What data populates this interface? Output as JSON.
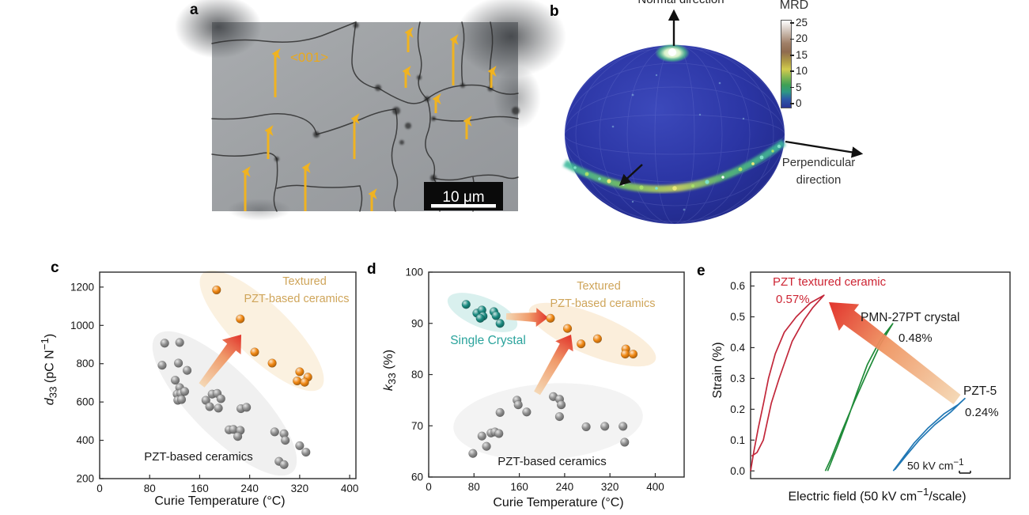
{
  "panel_a": {
    "label": "a",
    "orientation_label": "<001>",
    "scalebar_label": "10 μm"
  },
  "panel_b": {
    "label": "b",
    "normal_direction": "Normal direction",
    "perpendicular_line1": "Perpendicular",
    "perpendicular_line2": "direction",
    "colorbar": {
      "title": "MRD",
      "ticks": [
        "25",
        "20",
        "15",
        "10",
        "5",
        "0"
      ]
    }
  },
  "panel_c": {
    "label": "c",
    "xlabel": "Curie Temperature (°C)",
    "ylabel_html": "<i>d</i><sub>33</sub> (pC N<sup>−1</sup>)",
    "annotation_textured_line1": "Textured",
    "annotation_textured_line2": "PZT-based ceramics",
    "annotation_plain": "PZT-based ceramics"
  },
  "panel_d": {
    "label": "d",
    "xlabel": "Curie Temperature (°C)",
    "ylabel_html": "<i>k</i><sub>33</sub> (%)",
    "annotation_textured_line1": "Textured",
    "annotation_textured_line2": "PZT-based ceramics",
    "annotation_single_crystal": "Single Crystal",
    "annotation_plain": "PZT-based ceramics"
  },
  "panel_e": {
    "label": "e",
    "xlabel_html": "Electric field (50 kV cm<sup>−1</sup>/scale)",
    "ylabel": "Strain (%)",
    "labels": {
      "red_name": "PZT textured ceramic",
      "red_value": "0.57%",
      "green_name": "PMN-27PT crystal",
      "green_value": "0.48%",
      "blue_name": "PZT-5",
      "blue_value": "0.24%",
      "scale_note_html": "50 kV cm<sup>−1</sup>"
    }
  },
  "chart_data": [
    {
      "id": "c",
      "type": "scatter",
      "title": "",
      "xlabel": "Curie Temperature (°C)",
      "ylabel": "d33 (pC N⁻¹)",
      "xlim": [
        0,
        410
      ],
      "ylim": [
        200,
        1278
      ],
      "xticks": [
        0,
        80,
        160,
        240,
        320,
        400
      ],
      "yticks": [
        200,
        400,
        600,
        800,
        1000,
        1200
      ],
      "grid": false,
      "legend": "none",
      "series": [
        {
          "name": "PZT-based ceramics",
          "color": "#8f8f8f",
          "points": [
            [
              104,
              907
            ],
            [
              128,
              911
            ],
            [
              100,
              792
            ],
            [
              126,
              803
            ],
            [
              140,
              765
            ],
            [
              121,
              714
            ],
            [
              128,
              675
            ],
            [
              124,
              641
            ],
            [
              130,
              645
            ],
            [
              136,
              655
            ],
            [
              125,
              609
            ],
            [
              131,
              613
            ],
            [
              180,
              641
            ],
            [
              188,
              645
            ],
            [
              194,
              617
            ],
            [
              170,
              609
            ],
            [
              176,
              576
            ],
            [
              190,
              568
            ],
            [
              226,
              565
            ],
            [
              235,
              572
            ],
            [
              207,
              455
            ],
            [
              214,
              457
            ],
            [
              225,
              452
            ],
            [
              221,
              420
            ],
            [
              280,
              444
            ],
            [
              295,
              434
            ],
            [
              297,
              400
            ],
            [
              320,
              372
            ],
            [
              330,
              338
            ],
            [
              287,
              290
            ],
            [
              295,
              273
            ]
          ]
        },
        {
          "name": "Textured PZT-based ceramics",
          "color": "#f08712",
          "points": [
            [
              187,
              1185
            ],
            [
              225,
              1034
            ],
            [
              248,
              861
            ],
            [
              276,
              803
            ],
            [
              320,
              758
            ],
            [
              333,
              730
            ],
            [
              316,
              710
            ],
            [
              328,
              703
            ]
          ]
        }
      ]
    },
    {
      "id": "d",
      "type": "scatter",
      "title": "",
      "xlabel": "Curie Temperature (°C)",
      "ylabel": "k33 (%)",
      "xlim": [
        0,
        451
      ],
      "ylim": [
        60,
        100
      ],
      "xticks": [
        0,
        80,
        160,
        240,
        320,
        400
      ],
      "yticks": [
        60,
        70,
        80,
        90,
        100
      ],
      "grid": false,
      "legend": "none",
      "series": [
        {
          "name": "PZT-based ceramics",
          "color": "#8f8f8f",
          "points": [
            [
              78,
              64.6
            ],
            [
              94,
              68
            ],
            [
              102,
              66
            ],
            [
              110,
              68.6
            ],
            [
              117,
              68.8
            ],
            [
              124,
              68.5
            ],
            [
              126,
              72.6
            ],
            [
              156,
              75
            ],
            [
              158,
              74.1
            ],
            [
              173,
              72.7
            ],
            [
              220,
              75.7
            ],
            [
              231,
              75.2
            ],
            [
              234,
              74.1
            ],
            [
              231,
              71.8
            ],
            [
              278,
              69.8
            ],
            [
              311,
              69.9
            ],
            [
              343,
              69.9
            ],
            [
              346,
              66.8
            ]
          ]
        },
        {
          "name": "Single Crystal",
          "color": "#1a8a80",
          "points": [
            [
              66,
              93.7
            ],
            [
              85,
              92
            ],
            [
              94,
              92.6
            ],
            [
              96,
              91.4
            ],
            [
              91,
              91
            ],
            [
              115,
              92.3
            ],
            [
              119,
              91.5
            ],
            [
              126,
              90
            ]
          ]
        },
        {
          "name": "Textured PZT-based ceramics",
          "color": "#f08712",
          "points": [
            [
              215,
              91
            ],
            [
              245,
              89
            ],
            [
              269,
              86
            ],
            [
              298,
              87
            ],
            [
              348,
              85
            ],
            [
              347,
              84
            ],
            [
              361,
              84
            ]
          ]
        }
      ]
    },
    {
      "id": "e",
      "type": "line",
      "title": "",
      "xlabel": "Electric field (50 kV cm⁻¹/scale)",
      "ylabel": "Strain (%)",
      "xlim": [
        0,
        1
      ],
      "ylim": [
        -0.025,
        0.645
      ],
      "xticks": [],
      "yticks": [
        0,
        0.1,
        0.2,
        0.3,
        0.4,
        0.5,
        0.6
      ],
      "ytick_labels": [
        "0.0",
        "0.1",
        "0.2",
        "0.3",
        "0.4",
        "0.5",
        "0.6"
      ],
      "grid": false,
      "legend": "none",
      "series": [
        {
          "name": "PZT textured ceramic",
          "max_strain": "0.57%",
          "color": "#c2273a",
          "loop": [
            [
              0,
              0
            ],
            [
              0.012,
              0.06
            ],
            [
              0.03,
              0.14
            ],
            [
              0.05,
              0.22
            ],
            [
              0.069,
              0.3
            ],
            [
              0.095,
              0.38
            ],
            [
              0.13,
              0.45
            ],
            [
              0.176,
              0.5
            ],
            [
              0.23,
              0.545
            ],
            [
              0.283,
              0.57
            ],
            [
              0.24,
              0.53
            ],
            [
              0.206,
              0.49
            ],
            [
              0.16,
              0.42
            ],
            [
              0.11,
              0.3
            ],
            [
              0.08,
              0.22
            ],
            [
              0.049,
              0.1
            ],
            [
              0.025,
              0.06
            ],
            [
              0.004,
              0.048
            ]
          ]
        },
        {
          "name": "PMN-27PT crystal",
          "max_strain": "0.48%",
          "color": "#1f8b39",
          "loop": [
            [
              0.297,
              0
            ],
            [
              0.335,
              0.08
            ],
            [
              0.373,
              0.165
            ],
            [
              0.41,
              0.255
            ],
            [
              0.45,
              0.345
            ],
            [
              0.5,
              0.425
            ],
            [
              0.548,
              0.478
            ],
            [
              0.5,
              0.41
            ],
            [
              0.45,
              0.32
            ],
            [
              0.4,
              0.225
            ],
            [
              0.35,
              0.125
            ],
            [
              0.31,
              0.04
            ],
            [
              0.288,
              0
            ]
          ]
        },
        {
          "name": "PZT-5",
          "max_strain": "0.24%",
          "color": "#2077b4",
          "loop": [
            [
              0.55,
              0
            ],
            [
              0.585,
              0.04
            ],
            [
              0.63,
              0.09
            ],
            [
              0.685,
              0.14
            ],
            [
              0.745,
              0.185
            ],
            [
              0.8,
              0.215
            ],
            [
              0.826,
              0.235
            ],
            [
              0.77,
              0.19
            ],
            [
              0.71,
              0.15
            ],
            [
              0.65,
              0.1
            ],
            [
              0.6,
              0.05
            ],
            [
              0.556,
              0.004
            ]
          ]
        }
      ]
    }
  ]
}
